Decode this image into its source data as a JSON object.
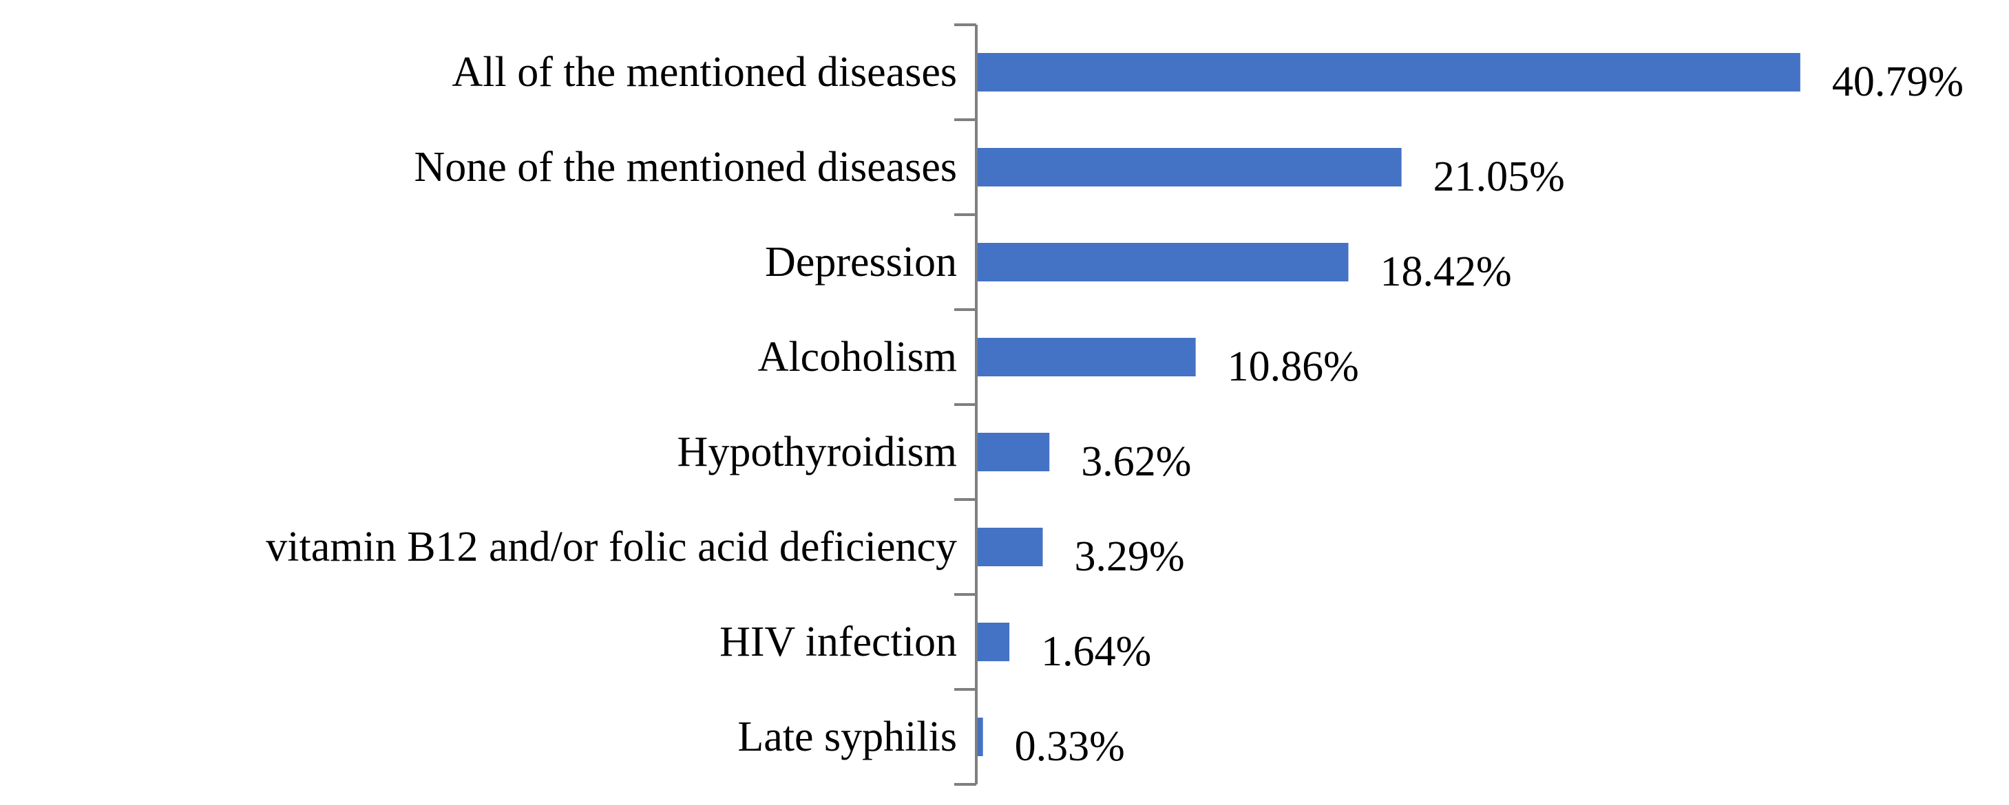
{
  "chart_data": {
    "type": "bar",
    "orientation": "horizontal",
    "title": "",
    "xlabel": "",
    "ylabel": "",
    "categories": [
      "All of the mentioned diseases",
      "None of the mentioned diseases",
      "Depression",
      "Alcoholism",
      "Hypothyroidism",
      "vitamin B12 and/or folic acid deficiency",
      "HIV infection",
      "Late syphilis"
    ],
    "values": [
      40.79,
      21.05,
      18.42,
      10.86,
      3.62,
      3.29,
      1.64,
      0.33
    ],
    "data_labels": [
      "40.79%",
      "21.05%",
      "18.42%",
      "10.86%",
      "3.62%",
      "3.29%",
      "1.64%",
      "0.33%"
    ],
    "xlim": [
      0,
      41
    ],
    "grid": false,
    "legend": "none",
    "bar_color": "#4472C4",
    "axis_color": "#7F7F7F"
  }
}
